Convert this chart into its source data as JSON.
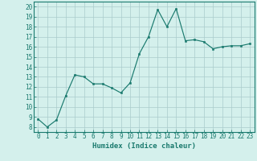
{
  "x": [
    0,
    1,
    2,
    3,
    4,
    5,
    6,
    7,
    8,
    9,
    10,
    11,
    12,
    13,
    14,
    15,
    16,
    17,
    18,
    19,
    20,
    21,
    22,
    23
  ],
  "y": [
    8.8,
    8.0,
    8.7,
    11.1,
    13.2,
    13.0,
    12.3,
    12.3,
    11.9,
    11.4,
    12.4,
    15.3,
    17.0,
    19.7,
    18.0,
    19.8,
    16.6,
    16.7,
    16.5,
    15.8,
    16.0,
    16.1,
    16.1,
    16.3
  ],
  "xlabel": "Humidex (Indice chaleur)",
  "ylim": [
    7.5,
    20.5
  ],
  "xlim": [
    -0.5,
    23.5
  ],
  "yticks": [
    8,
    9,
    10,
    11,
    12,
    13,
    14,
    15,
    16,
    17,
    18,
    19,
    20
  ],
  "xticks": [
    0,
    1,
    2,
    3,
    4,
    5,
    6,
    7,
    8,
    9,
    10,
    11,
    12,
    13,
    14,
    15,
    16,
    17,
    18,
    19,
    20,
    21,
    22,
    23
  ],
  "line_color": "#1a7a6e",
  "bg_color": "#d4f0ec",
  "grid_color": "#aacccc",
  "label_fontsize": 6.5,
  "tick_fontsize": 5.5
}
